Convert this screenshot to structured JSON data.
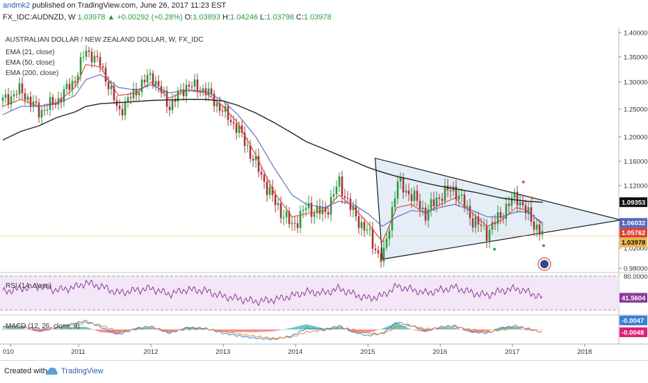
{
  "header": {
    "user": "andmk2",
    "published": "published on TradingView.com, June 26, 2017 11:23 EST",
    "symbol": "FX_IDC:AUDNZD, W",
    "last": "1.03978",
    "change": "+0.00292 (+0.28%)",
    "o_label": "O:",
    "o_val": "1.03893",
    "h_label": "H:",
    "h_val": "1.04246",
    "l_label": "L:",
    "l_val": "1.03798",
    "c_label": "C:",
    "c_val": "1.03978"
  },
  "footer": {
    "created_with": "Created with",
    "brand": "TradingView"
  },
  "colors": {
    "up": "#2a9a3a",
    "down": "#a8323a",
    "ema21": "#d9433a",
    "ema50": "#5566b8",
    "ema200": "#222222",
    "rsi": "#8a3a9a",
    "rsi_bg": "#f3e6f7",
    "macd": "#3a7fd6",
    "signal": "#e8862a",
    "hist_pos": "#26a69a",
    "hist_neg": "#ef5350",
    "triangle": "#dce8f3",
    "sell_marker": "#e05050",
    "buy_marker": "#2aa84a"
  },
  "chart_data": [
    {
      "type": "line",
      "title": "AUSTRALIAN DOLLAR / NEW ZEALAND DOLLAR, W, FX_IDC",
      "legend": [
        "EMA (21, close)",
        "EMA (50, close)",
        "EMA (200, close)"
      ],
      "x_ticks": [
        "010",
        "2011",
        "2012",
        "2013",
        "2014",
        "2015",
        "2016",
        "2017",
        "2018"
      ],
      "y_ticks": [
        "1.40000",
        "1.35000",
        "1.30000",
        "1.25000",
        "1.20000",
        "1.16000",
        "1.12000",
        "1.02000",
        "0.98000"
      ],
      "ylim": [
        0.97,
        1.405
      ],
      "x": [
        2009.95,
        2010.2,
        2010.45,
        2010.7,
        2010.95,
        2011.1,
        2011.3,
        2011.55,
        2011.8,
        2012.0,
        2012.25,
        2012.5,
        2012.75,
        2013.0,
        2013.2,
        2013.45,
        2013.7,
        2013.95,
        2014.15,
        2014.4,
        2014.6,
        2014.8,
        2015.0,
        2015.2,
        2015.4,
        2015.6,
        2015.8,
        2016.0,
        2016.2,
        2016.45,
        2016.65,
        2016.85,
        2017.05,
        2017.2,
        2017.42
      ],
      "series": [
        {
          "name": "AUDNZD",
          "values": [
            1.265,
            1.285,
            1.245,
            1.265,
            1.305,
            1.365,
            1.335,
            1.245,
            1.285,
            1.315,
            1.255,
            1.295,
            1.285,
            1.245,
            1.215,
            1.155,
            1.095,
            1.055,
            1.085,
            1.075,
            1.125,
            1.075,
            1.045,
            0.995,
            1.125,
            1.105,
            1.075,
            1.105,
            1.115,
            1.065,
            1.045,
            1.075,
            1.105,
            1.075,
            1.0398
          ]
        },
        {
          "name": "EMA (21, close)",
          "values": [
            1.255,
            1.268,
            1.255,
            1.262,
            1.29,
            1.335,
            1.33,
            1.275,
            1.28,
            1.3,
            1.27,
            1.285,
            1.28,
            1.255,
            1.225,
            1.17,
            1.11,
            1.07,
            1.075,
            1.08,
            1.105,
            1.085,
            1.06,
            1.03,
            1.085,
            1.09,
            1.075,
            1.09,
            1.1,
            1.075,
            1.055,
            1.065,
            1.085,
            1.08,
            1.0576
          ]
        },
        {
          "name": "EMA (50, close)",
          "values": [
            1.24,
            1.255,
            1.255,
            1.26,
            1.275,
            1.305,
            1.315,
            1.29,
            1.285,
            1.295,
            1.28,
            1.285,
            1.283,
            1.265,
            1.24,
            1.2,
            1.15,
            1.105,
            1.09,
            1.085,
            1.095,
            1.09,
            1.075,
            1.055,
            1.07,
            1.08,
            1.078,
            1.085,
            1.09,
            1.08,
            1.07,
            1.07,
            1.078,
            1.078,
            1.0603
          ]
        },
        {
          "name": "EMA (200, close)",
          "values": [
            1.195,
            1.21,
            1.22,
            1.235,
            1.245,
            1.255,
            1.26,
            1.262,
            1.264,
            1.266,
            1.267,
            1.268,
            1.268,
            1.265,
            1.257,
            1.243,
            1.226,
            1.207,
            1.192,
            1.18,
            1.17,
            1.16,
            1.15,
            1.142,
            1.135,
            1.13,
            1.124,
            1.119,
            1.115,
            1.11,
            1.105,
            1.1,
            1.097,
            1.095,
            1.0935
          ]
        }
      ],
      "price_tags": [
        {
          "value": 1.09353,
          "label": "1.09353",
          "color": "#111111"
        },
        {
          "value": 1.06032,
          "label": "1.06032",
          "color": "#5566b8"
        },
        {
          "value": 1.05762,
          "label": "1.05762",
          "color": "#d9433a"
        },
        {
          "value": 1.03978,
          "label": "1.03978",
          "color": "#f0b84a"
        }
      ],
      "current_price_line": 1.03978,
      "triangle": [
        [
          2015.1,
          1.165
        ],
        [
          2015.2,
          0.998
        ],
        [
          2018.5,
          1.065
        ]
      ]
    },
    {
      "type": "line",
      "title": "RSI (14, close)",
      "y_ticks": [
        "80.0000"
      ],
      "last_label": "41.5604",
      "values": [
        52,
        58,
        62,
        55,
        60,
        68,
        62,
        50,
        55,
        58,
        48,
        56,
        54,
        44,
        40,
        35,
        38,
        45,
        52,
        50,
        58,
        48,
        40,
        45,
        62,
        56,
        50,
        55,
        60,
        50,
        46,
        54,
        58,
        52,
        41.56
      ]
    },
    {
      "type": "line",
      "title": "MACD (12, 26, close, 9)",
      "last_macd_label": "-0.0047",
      "last_signal_label": "-0.0048",
      "macd": [
        0.004,
        0.006,
        -0.002,
        0.003,
        0.01,
        0.014,
        0.004,
        -0.008,
        0.002,
        0.005,
        -0.006,
        0.003,
        0.002,
        -0.006,
        -0.01,
        -0.014,
        -0.016,
        -0.01,
        0.002,
        0.0,
        0.006,
        -0.004,
        -0.01,
        -0.006,
        0.012,
        0.006,
        -0.002,
        0.004,
        0.006,
        -0.004,
        -0.006,
        0.002,
        0.006,
        0.001,
        -0.0047
      ],
      "signal": [
        0.003,
        0.004,
        0.001,
        0.002,
        0.007,
        0.011,
        0.007,
        -0.003,
        0.0,
        0.003,
        -0.002,
        0.0,
        0.001,
        -0.003,
        -0.007,
        -0.011,
        -0.014,
        -0.012,
        -0.004,
        -0.001,
        0.003,
        0.0,
        -0.006,
        -0.007,
        0.004,
        0.006,
        0.001,
        0.002,
        0.004,
        0.0,
        -0.004,
        -0.001,
        0.003,
        0.002,
        -0.0048
      ]
    }
  ]
}
